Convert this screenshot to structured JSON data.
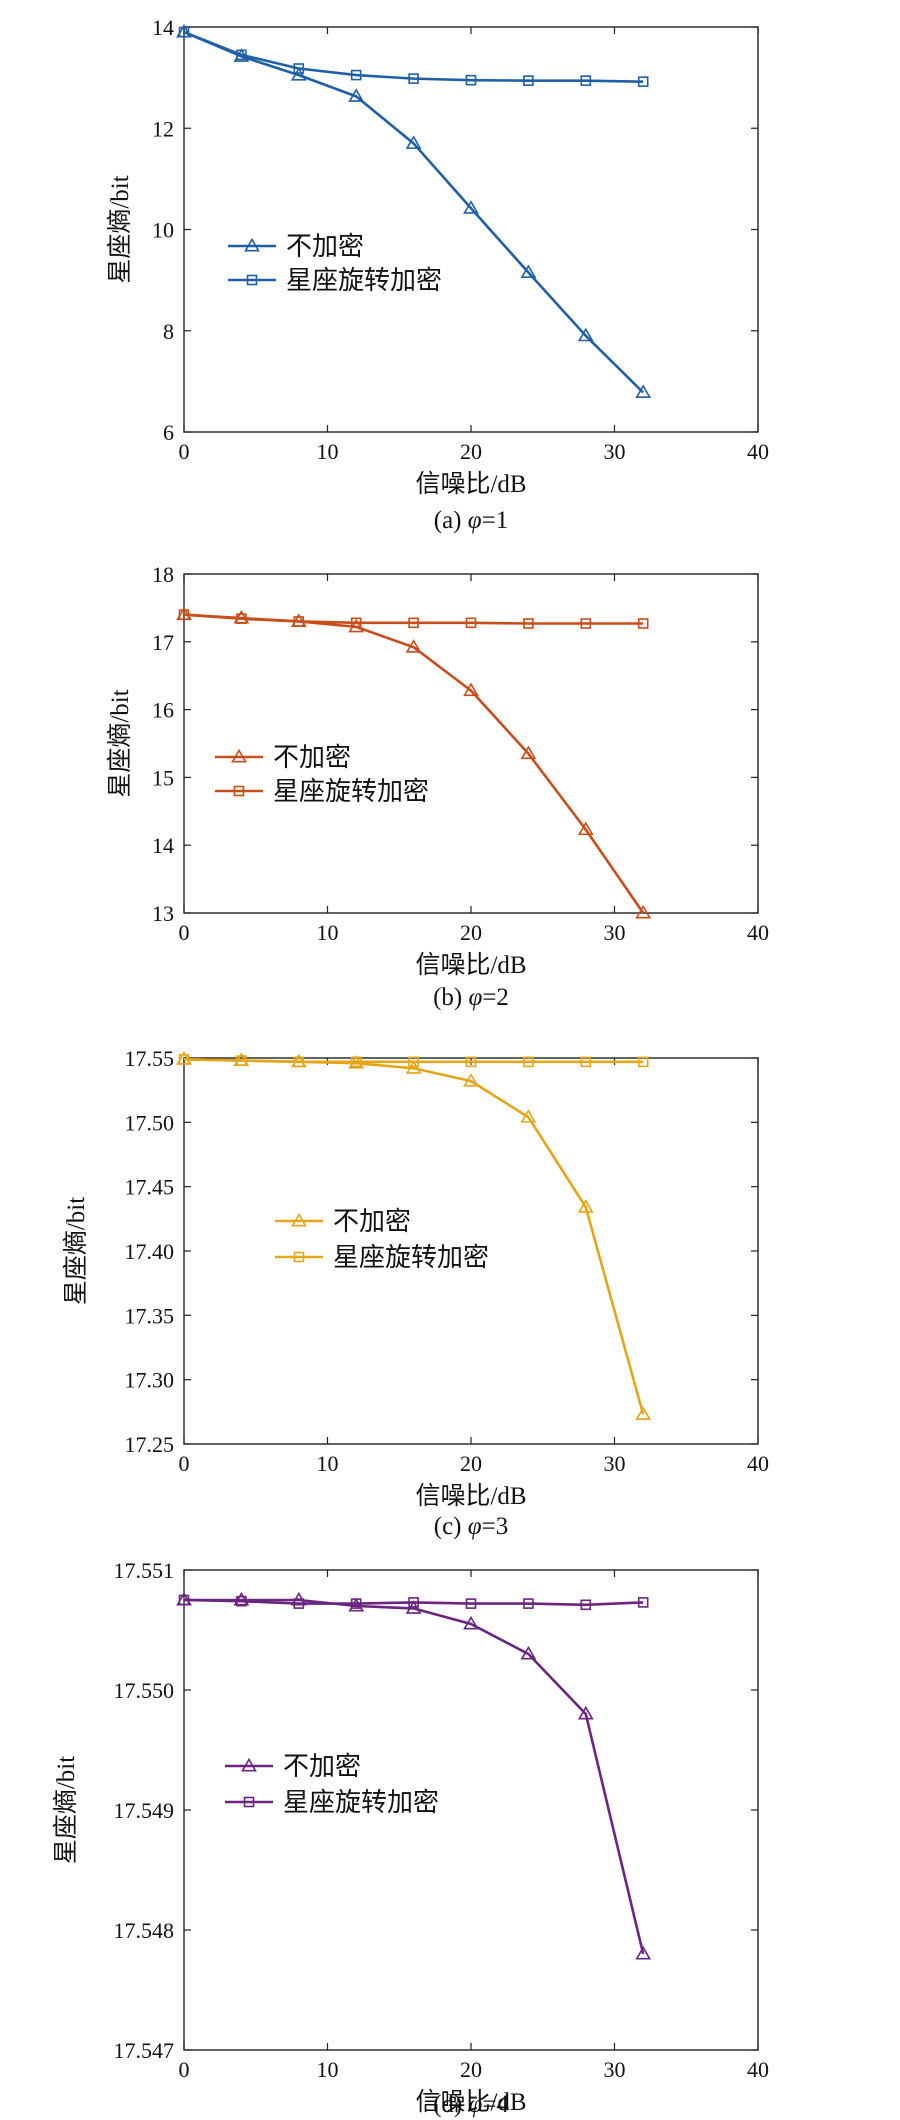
{
  "chart_data": [
    {
      "type": "line",
      "caption_prefix": "(a) ",
      "caption_symbol": "φ",
      "caption_value": "=1",
      "xlabel": "信噪比/dB",
      "ylabel": "星座熵/bit",
      "xlim": [
        0,
        40
      ],
      "ylim": [
        6,
        14
      ],
      "xticks": [
        "0",
        "10",
        "20",
        "30",
        "40"
      ],
      "yticks": [
        "6",
        "8",
        "10",
        "12",
        "14"
      ],
      "color": "#1f5fa6",
      "legend_placement": "center-left",
      "x": [
        0,
        4,
        8,
        12,
        16,
        20,
        24,
        28,
        32
      ],
      "series": [
        {
          "name": "不加密",
          "marker": "triangle",
          "values": [
            13.9,
            13.42,
            13.05,
            12.63,
            11.7,
            10.42,
            9.15,
            7.9,
            6.78
          ]
        },
        {
          "name": "星座旋转加密",
          "marker": "square",
          "values": [
            13.9,
            13.45,
            13.18,
            13.05,
            12.98,
            12.95,
            12.94,
            12.94,
            12.92
          ]
        }
      ]
    },
    {
      "type": "line",
      "caption_prefix": "(b) ",
      "caption_symbol": "φ",
      "caption_value": "=2",
      "xlabel": "信噪比/dB",
      "ylabel": "星座熵/bit",
      "xlim": [
        0,
        40
      ],
      "ylim": [
        13,
        18
      ],
      "xticks": [
        "0",
        "10",
        "20",
        "30",
        "40"
      ],
      "yticks": [
        "13",
        "14",
        "15",
        "16",
        "17",
        "18"
      ],
      "color": "#c94d1a",
      "legend_placement": "center-left",
      "x": [
        0,
        4,
        8,
        12,
        16,
        20,
        24,
        28,
        32
      ],
      "series": [
        {
          "name": "不加密",
          "marker": "triangle",
          "values": [
            17.4,
            17.35,
            17.3,
            17.22,
            16.92,
            16.28,
            15.35,
            14.23,
            13.0
          ]
        },
        {
          "name": "星座旋转加密",
          "marker": "square",
          "values": [
            17.4,
            17.34,
            17.3,
            17.28,
            17.28,
            17.28,
            17.27,
            17.27,
            17.27
          ]
        }
      ]
    },
    {
      "type": "line",
      "caption_prefix": "(c) ",
      "caption_symbol": "φ",
      "caption_value": "=3",
      "xlabel": "信噪比/dB",
      "ylabel": "星座熵/bit",
      "xlim": [
        0,
        40
      ],
      "ylim": [
        17.25,
        17.55
      ],
      "xticks": [
        "0",
        "10",
        "20",
        "30",
        "40"
      ],
      "yticks": [
        "17.25",
        "17.30",
        "17.35",
        "17.40",
        "17.45",
        "17.50",
        "17.55"
      ],
      "color": "#e6a417",
      "legend_placement": "center",
      "x": [
        0,
        4,
        8,
        12,
        16,
        20,
        24,
        28,
        32
      ],
      "series": [
        {
          "name": "不加密",
          "marker": "triangle",
          "values": [
            17.549,
            17.548,
            17.547,
            17.546,
            17.542,
            17.532,
            17.504,
            17.434,
            17.273
          ]
        },
        {
          "name": "星座旋转加密",
          "marker": "square",
          "values": [
            17.549,
            17.548,
            17.547,
            17.547,
            17.547,
            17.547,
            17.547,
            17.547,
            17.547
          ]
        }
      ]
    },
    {
      "type": "line",
      "caption_prefix": "(d) ",
      "caption_symbol": "φ",
      "caption_value": "=4",
      "xlabel": "信噪比/dB",
      "ylabel": "星座熵/bit",
      "xlim": [
        0,
        40
      ],
      "ylim": [
        17.547,
        17.551
      ],
      "xticks": [
        "0",
        "10",
        "20",
        "30",
        "40"
      ],
      "yticks": [
        "17.547",
        "17.548",
        "17.549",
        "17.550",
        "17.551"
      ],
      "color": "#6b2480",
      "legend_placement": "center-left",
      "x": [
        0,
        4,
        8,
        12,
        16,
        20,
        24,
        28,
        32
      ],
      "series": [
        {
          "name": "不加密",
          "marker": "triangle",
          "values": [
            17.55075,
            17.55075,
            17.55075,
            17.5507,
            17.55068,
            17.55055,
            17.5503,
            17.5498,
            17.5478
          ]
        },
        {
          "name": "星座旋转加密",
          "marker": "square",
          "values": [
            17.55075,
            17.55074,
            17.55072,
            17.55072,
            17.55073,
            17.55072,
            17.55072,
            17.55071,
            17.55073
          ]
        }
      ]
    }
  ]
}
